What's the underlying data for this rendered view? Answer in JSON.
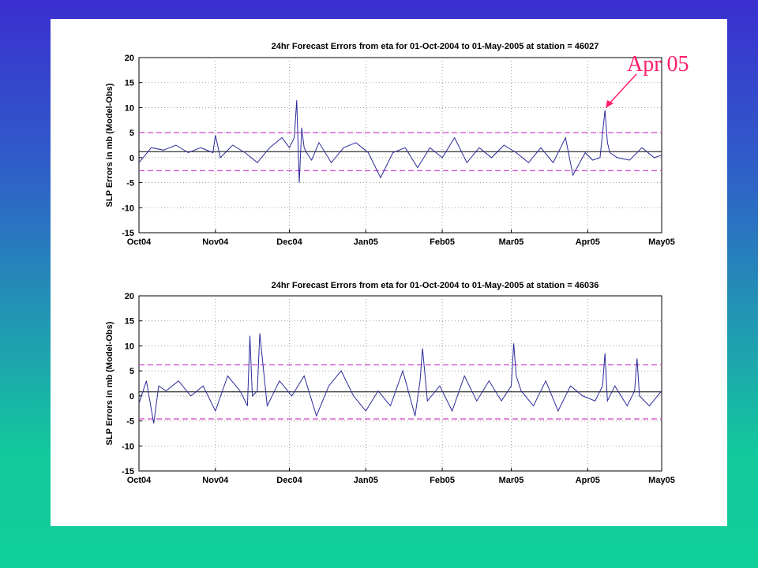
{
  "annotation": {
    "text": "Apr 05",
    "color": "#ff1f6a"
  },
  "chart_data": [
    {
      "type": "line",
      "title": "24hr Forecast Errors from eta for 01-Oct-2004 to 01-May-2005 at station = 46027",
      "ylabel": "SLP Errors in mb (Model-Obs)",
      "xlabel": "",
      "ylim": [
        -15,
        20
      ],
      "yticks": [
        -15,
        -10,
        -5,
        0,
        5,
        10,
        15,
        20
      ],
      "xticks": [
        "Oct04",
        "Nov04",
        "Dec04",
        "Jan05",
        "Feb05",
        "Mar05",
        "Apr05",
        "May05"
      ],
      "xtick_dates": [
        "2004-10-01",
        "2004-11-01",
        "2004-12-01",
        "2005-01-01",
        "2005-02-01",
        "2005-03-01",
        "2005-04-01",
        "2005-05-01"
      ],
      "grid": true,
      "line_color": "#2b2b9a",
      "ref_color": "#cc44cc",
      "mean": 1.2,
      "upper": 5.0,
      "lower": -2.6,
      "series": [
        {
          "x": [
            "2004-10-01",
            "2004-10-06",
            "2004-10-11",
            "2004-10-16",
            "2004-10-21",
            "2004-10-26",
            "2004-10-31",
            "2004-11-01",
            "2004-11-03",
            "2004-11-08",
            "2004-11-13",
            "2004-11-18",
            "2004-11-23",
            "2004-11-28",
            "2004-12-01",
            "2004-12-03",
            "2004-12-04",
            "2004-12-05",
            "2004-12-06",
            "2004-12-07",
            "2004-12-08",
            "2004-12-10",
            "2004-12-13",
            "2004-12-18",
            "2004-12-23",
            "2004-12-28",
            "2005-01-02",
            "2005-01-07",
            "2005-01-12",
            "2005-01-17",
            "2005-01-22",
            "2005-01-27",
            "2005-02-01",
            "2005-02-06",
            "2005-02-11",
            "2005-02-16",
            "2005-02-21",
            "2005-02-26",
            "2005-03-03",
            "2005-03-08",
            "2005-03-13",
            "2005-03-18",
            "2005-03-21",
            "2005-03-23",
            "2005-03-26",
            "2005-03-31",
            "2005-04-03",
            "2005-04-06",
            "2005-04-08",
            "2005-04-09",
            "2005-04-10",
            "2005-04-13",
            "2005-04-18",
            "2005-04-23",
            "2005-04-28",
            "2005-05-01"
          ],
          "values": [
            -1,
            2,
            1.5,
            2.5,
            1,
            2,
            1,
            4.5,
            0,
            2.5,
            1,
            -1,
            2,
            4,
            2,
            4,
            11.5,
            -5,
            6,
            2,
            1,
            -0.5,
            3,
            -1,
            2,
            3,
            1,
            -4,
            1,
            2,
            -2,
            2,
            0,
            4,
            -1,
            2,
            0,
            2.5,
            1,
            -1,
            2,
            -1,
            2,
            4,
            -3.5,
            1,
            -0.5,
            0,
            9.5,
            3,
            1,
            0,
            -0.5,
            2,
            0,
            0.5
          ]
        }
      ]
    },
    {
      "type": "line",
      "title": "24hr Forecast Errors from eta for 01-Oct-2004 to 01-May-2005 at station = 46036",
      "ylabel": "SLP Errors in mb (Model-Obs)",
      "xlabel": "",
      "ylim": [
        -15,
        20
      ],
      "yticks": [
        -15,
        -10,
        -5,
        0,
        5,
        10,
        15,
        20
      ],
      "xticks": [
        "Oct04",
        "Nov04",
        "Dec04",
        "Jan05",
        "Feb05",
        "Mar05",
        "Apr05",
        "May05"
      ],
      "xtick_dates": [
        "2004-10-01",
        "2004-11-01",
        "2004-12-01",
        "2005-01-01",
        "2005-02-01",
        "2005-03-01",
        "2005-04-01",
        "2005-05-01"
      ],
      "grid": true,
      "line_color": "#2b2b9a",
      "ref_color": "#cc44cc",
      "mean": 0.8,
      "upper": 6.2,
      "lower": -4.6,
      "series": [
        {
          "x": [
            "2004-10-01",
            "2004-10-04",
            "2004-10-07",
            "2004-10-09",
            "2004-10-12",
            "2004-10-17",
            "2004-10-22",
            "2004-10-27",
            "2004-11-01",
            "2004-11-06",
            "2004-11-11",
            "2004-11-14",
            "2004-11-15",
            "2004-11-16",
            "2004-11-18",
            "2004-11-19",
            "2004-11-22",
            "2004-11-27",
            "2004-12-02",
            "2004-12-07",
            "2004-12-12",
            "2004-12-17",
            "2004-12-22",
            "2004-12-27",
            "2005-01-01",
            "2005-01-06",
            "2005-01-11",
            "2005-01-16",
            "2005-01-21",
            "2005-01-23",
            "2005-01-24",
            "2005-01-26",
            "2005-01-31",
            "2005-02-05",
            "2005-02-10",
            "2005-02-15",
            "2005-02-20",
            "2005-02-25",
            "2005-03-01",
            "2005-03-02",
            "2005-03-03",
            "2005-03-05",
            "2005-03-10",
            "2005-03-15",
            "2005-03-20",
            "2005-03-25",
            "2005-03-30",
            "2005-04-04",
            "2005-04-07",
            "2005-04-08",
            "2005-04-09",
            "2005-04-12",
            "2005-04-17",
            "2005-04-20",
            "2005-04-21",
            "2005-04-22",
            "2005-04-26",
            "2005-05-01"
          ],
          "values": [
            -1.5,
            3,
            -5.5,
            2,
            1,
            3,
            0,
            2,
            -3,
            4,
            1,
            -2,
            12,
            0,
            1,
            12.5,
            -2,
            3,
            0,
            4,
            -4,
            2,
            5,
            0,
            -3,
            1,
            -2,
            5,
            -4,
            3,
            9.5,
            -1,
            2,
            -3,
            4,
            -1,
            3,
            -1,
            2,
            10.5,
            4,
            1,
            -2,
            3,
            -3,
            2,
            0,
            -1,
            2,
            8.5,
            -1,
            2,
            -2,
            1,
            7.5,
            0,
            -2,
            1
          ]
        }
      ]
    }
  ]
}
